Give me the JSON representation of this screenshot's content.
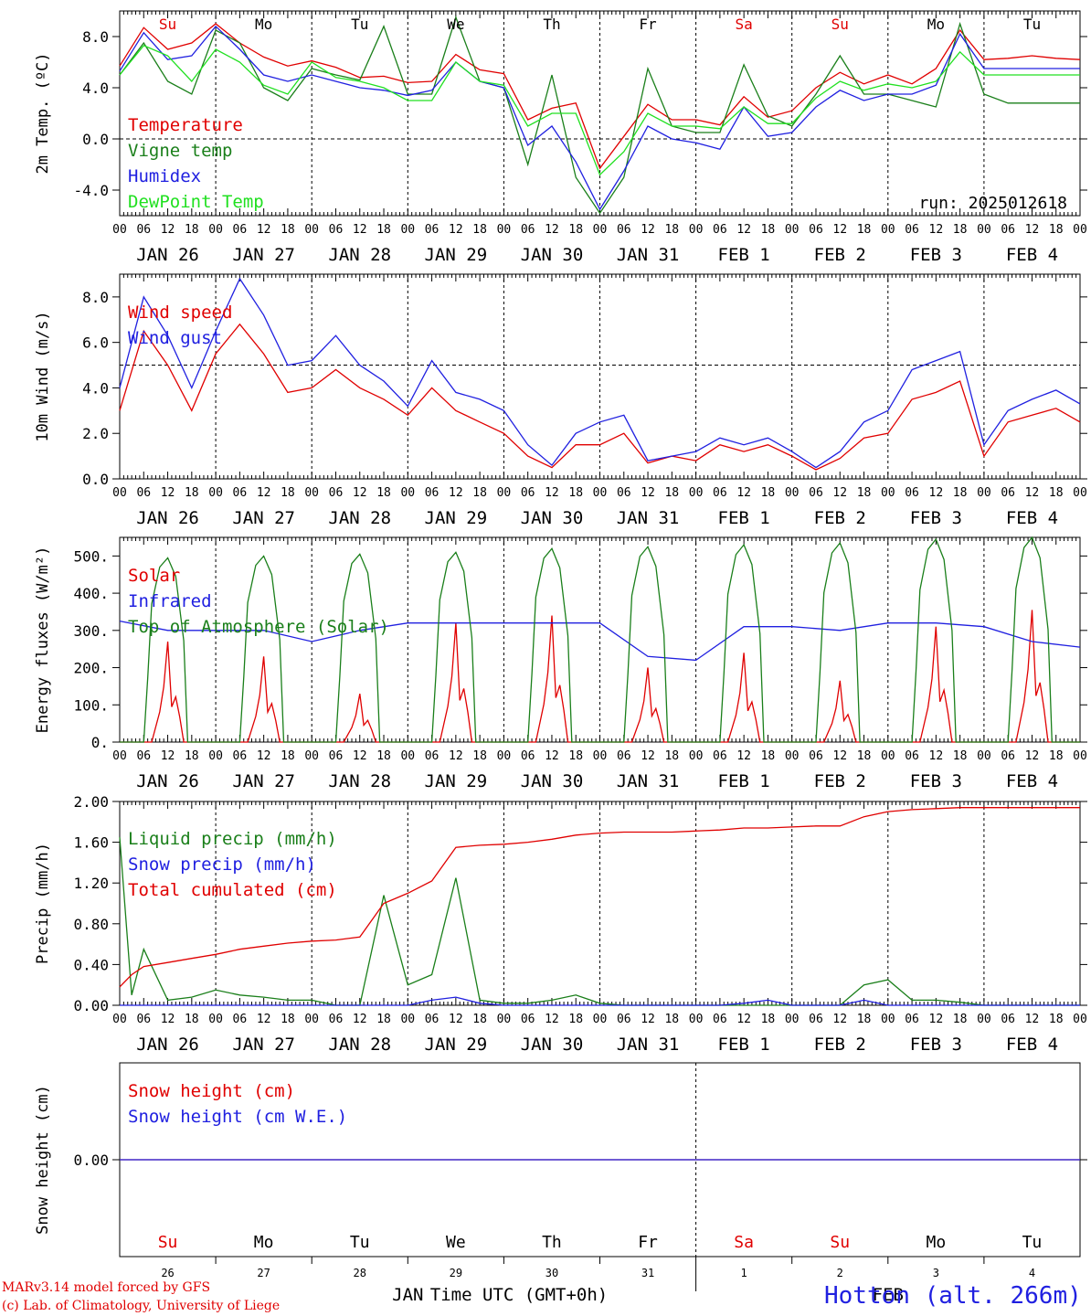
{
  "footer": {
    "model_line": "MARv3.14 model forced by GFS",
    "credit_line": "(c) Lab. of Climatology, University of Liege",
    "station": "Hotton (alt. 266m)"
  },
  "time_axis": {
    "hour_ticks": [
      "00",
      "06",
      "12",
      "18"
    ],
    "date_labels": [
      "JAN 26",
      "JAN 27",
      "JAN 28",
      "JAN 29",
      "JAN 30",
      "JAN 31",
      "FEB  1",
      "FEB  2",
      "FEB  3",
      "FEB  4"
    ],
    "weekdays": [
      "Su",
      "Mo",
      "Tu",
      "We",
      "Th",
      "Fr",
      "Sa",
      "Su",
      "Mo",
      "Tu"
    ],
    "weekday_colors": [
      "#e00000",
      "#000000",
      "#000000",
      "#000000",
      "#000000",
      "#000000",
      "#e00000",
      "#e00000",
      "#000000",
      "#000000"
    ],
    "day_numbers": [
      "26",
      "27",
      "28",
      "29",
      "30",
      "31",
      "1",
      "2",
      "3",
      "4"
    ],
    "month_labels": [
      "JAN",
      "FEB"
    ],
    "xlabel": "Time UTC (GMT+0h)"
  },
  "chart_data": [
    {
      "type": "line",
      "ylabel": "2m Temp. (ºC)",
      "ylim": [
        -6,
        10
      ],
      "yticks": [
        "8.0",
        "4.0",
        "0.0",
        "-4.0"
      ],
      "ytick_values": [
        8,
        4,
        0,
        -4
      ],
      "ref_line": 0,
      "annotation": "run: 2025012618",
      "show_weekdays": true,
      "x_hours": [
        0,
        6,
        12,
        18,
        24,
        30,
        36,
        42,
        48,
        54,
        60,
        66,
        72,
        78,
        84,
        90,
        96,
        102,
        108,
        114,
        120,
        126,
        132,
        138,
        144,
        150,
        156,
        162,
        168,
        174,
        180,
        186,
        192,
        198,
        204,
        210,
        216,
        222,
        228,
        234,
        240
      ],
      "series": [
        {
          "name": "Temperature",
          "color": "#e00000",
          "values": [
            5.7,
            8.7,
            7.0,
            7.5,
            9.0,
            7.5,
            6.4,
            5.7,
            6.1,
            5.6,
            4.8,
            4.9,
            4.4,
            4.5,
            6.6,
            5.4,
            5.1,
            1.5,
            2.4,
            2.8,
            -2.3,
            0.2,
            2.7,
            1.5,
            1.5,
            1.1,
            3.3,
            1.7,
            2.2,
            4.0,
            5.2,
            4.3,
            5.0,
            4.3,
            5.5,
            8.5,
            6.2,
            6.3,
            6.5,
            6.3,
            6.2
          ]
        },
        {
          "name": "Vigne temp",
          "color": "#1a7f1a",
          "values": [
            5.0,
            7.5,
            4.5,
            3.5,
            8.5,
            7.5,
            4.0,
            3.0,
            5.5,
            5.0,
            4.6,
            8.8,
            3.5,
            3.5,
            9.5,
            4.5,
            4.0,
            -2.0,
            5.0,
            -3.0,
            -5.8,
            -3.0,
            5.5,
            1.0,
            0.5,
            0.5,
            5.8,
            1.8,
            1.0,
            3.5,
            6.5,
            3.5,
            3.5,
            3.0,
            2.5,
            9.0,
            3.5,
            2.8,
            2.8,
            2.8,
            2.8
          ]
        },
        {
          "name": "Humidex",
          "color": "#2020e0",
          "values": [
            5.3,
            8.3,
            6.2,
            6.5,
            8.8,
            7.0,
            5.0,
            4.5,
            5.0,
            4.5,
            4.0,
            3.8,
            3.4,
            3.8,
            6.0,
            4.5,
            4.0,
            -0.5,
            1.0,
            -1.8,
            -5.5,
            -2.5,
            1.0,
            0.0,
            -0.3,
            -0.8,
            2.5,
            0.2,
            0.5,
            2.5,
            3.8,
            3.0,
            3.5,
            3.5,
            4.2,
            8.2,
            5.5,
            5.5,
            5.5,
            5.5,
            5.5
          ]
        },
        {
          "name": "DewPoint Temp",
          "color": "#20e020",
          "values": [
            5.0,
            7.3,
            6.5,
            4.5,
            7.0,
            6.0,
            4.2,
            3.5,
            6.0,
            4.8,
            4.5,
            4.0,
            3.0,
            3.0,
            6.0,
            4.5,
            4.2,
            1.0,
            2.0,
            2.0,
            -2.8,
            -1.0,
            2.0,
            1.0,
            1.0,
            0.8,
            2.5,
            1.2,
            1.2,
            3.2,
            4.5,
            3.8,
            4.3,
            4.0,
            4.5,
            6.8,
            5.0,
            5.0,
            5.0,
            5.0,
            5.0
          ]
        }
      ]
    },
    {
      "type": "line",
      "ylabel": "10m Wind (m/s)",
      "ylim": [
        0,
        9
      ],
      "yticks": [
        "8.0",
        "6.0",
        "4.0",
        "2.0",
        "0.0"
      ],
      "ytick_values": [
        8,
        6,
        4,
        2,
        0
      ],
      "ref_line": 5,
      "show_weekdays": false,
      "x_hours": [
        0,
        6,
        12,
        18,
        24,
        30,
        36,
        42,
        48,
        54,
        60,
        66,
        72,
        78,
        84,
        90,
        96,
        102,
        108,
        114,
        120,
        126,
        132,
        138,
        144,
        150,
        156,
        162,
        168,
        174,
        180,
        186,
        192,
        198,
        204,
        210,
        216,
        222,
        228,
        234,
        240
      ],
      "series": [
        {
          "name": "Wind speed",
          "color": "#e00000",
          "values": [
            3.0,
            6.5,
            5.0,
            3.0,
            5.5,
            6.8,
            5.5,
            3.8,
            4.0,
            4.8,
            4.0,
            3.5,
            2.8,
            4.0,
            3.0,
            2.5,
            2.0,
            1.0,
            0.5,
            1.5,
            1.5,
            2.0,
            0.7,
            1.0,
            0.8,
            1.5,
            1.2,
            1.5,
            1.0,
            0.4,
            0.9,
            1.8,
            2.0,
            3.5,
            3.8,
            4.3,
            1.0,
            2.5,
            2.8,
            3.1,
            2.5
          ]
        },
        {
          "name": "Wind gust",
          "color": "#2020e0",
          "values": [
            4.0,
            8.0,
            6.3,
            4.0,
            6.5,
            8.8,
            7.2,
            5.0,
            5.2,
            6.3,
            5.0,
            4.3,
            3.2,
            5.2,
            3.8,
            3.5,
            3.0,
            1.5,
            0.6,
            2.0,
            2.5,
            2.8,
            0.8,
            1.0,
            1.2,
            1.8,
            1.5,
            1.8,
            1.2,
            0.5,
            1.2,
            2.5,
            3.0,
            4.8,
            5.2,
            5.6,
            1.5,
            3.0,
            3.5,
            3.9,
            3.3
          ]
        }
      ]
    },
    {
      "type": "line",
      "ylabel": "Energy fluxes (W/m²)",
      "ylim": [
        0,
        550
      ],
      "yticks": [
        "500.",
        "400.",
        "300.",
        "200.",
        "100.",
        "0."
      ],
      "ytick_values": [
        500,
        400,
        300,
        200,
        100,
        0
      ],
      "show_weekdays": false,
      "series": [
        {
          "name": "Solar",
          "color": "#e00000",
          "peaks": [
            270,
            230,
            130,
            320,
            340,
            200,
            240,
            165,
            310,
            355
          ]
        },
        {
          "name": "Infrared",
          "color": "#2020e0",
          "x_hours": [
            0,
            12,
            24,
            36,
            48,
            60,
            72,
            84,
            96,
            108,
            120,
            132,
            144,
            156,
            168,
            180,
            192,
            204,
            216,
            228,
            240
          ],
          "values": [
            325,
            300,
            300,
            300,
            270,
            300,
            320,
            320,
            320,
            320,
            320,
            230,
            220,
            310,
            310,
            300,
            320,
            320,
            310,
            270,
            255
          ]
        },
        {
          "name": "Top of Atmosphere (Solar)",
          "color": "#1a7f1a",
          "peaks": [
            495,
            500,
            505,
            510,
            520,
            525,
            530,
            535,
            545,
            550
          ]
        }
      ]
    },
    {
      "type": "line",
      "ylabel": "Precip (mm/h)",
      "ylim": [
        0,
        2
      ],
      "yticks": [
        "2.00",
        "1.60",
        "1.20",
        "0.80",
        "0.40",
        "0.00"
      ],
      "ytick_values": [
        2.0,
        1.6,
        1.2,
        0.8,
        0.4,
        0.0
      ],
      "show_weekdays": false,
      "x_hours": [
        0,
        3,
        6,
        12,
        18,
        24,
        30,
        36,
        42,
        48,
        54,
        60,
        66,
        72,
        78,
        84,
        90,
        96,
        102,
        108,
        114,
        120,
        126,
        132,
        138,
        144,
        150,
        156,
        162,
        168,
        174,
        180,
        186,
        192,
        198,
        204,
        210,
        216,
        222,
        228,
        234,
        240
      ],
      "series": [
        {
          "name": "Liquid precip (mm/h)",
          "color": "#1a7f1a",
          "values": [
            1.65,
            0.1,
            0.55,
            0.05,
            0.08,
            0.15,
            0.1,
            0.08,
            0.05,
            0.05,
            0.0,
            0.0,
            1.08,
            0.2,
            0.3,
            1.25,
            0.05,
            0.02,
            0.02,
            0.05,
            0.1,
            0.02,
            0.0,
            0.0,
            0.0,
            0.0,
            0.0,
            0.0,
            0.0,
            0.0,
            0.0,
            0.0,
            0.2,
            0.25,
            0.05,
            0.05,
            0.03,
            0.0,
            0.0,
            0.0,
            0.0,
            0.0
          ]
        },
        {
          "name": "Snow precip (mm/h)",
          "color": "#2020e0",
          "values": [
            0.0,
            0.0,
            0.0,
            0.0,
            0.0,
            0.0,
            0.0,
            0.0,
            0.0,
            0.0,
            0.0,
            0.0,
            0.0,
            0.0,
            0.05,
            0.08,
            0.02,
            0.0,
            0.0,
            0.0,
            0.0,
            0.0,
            0.0,
            0.0,
            0.0,
            0.0,
            0.0,
            0.02,
            0.05,
            0.0,
            0.0,
            0.0,
            0.05,
            0.0,
            0.0,
            0.0,
            0.0,
            0.0,
            0.0,
            0.0,
            0.0,
            0.0
          ]
        },
        {
          "name": "Total cumulated (cm)",
          "color": "#e00000",
          "values": [
            0.18,
            0.3,
            0.38,
            0.42,
            0.46,
            0.5,
            0.55,
            0.58,
            0.61,
            0.63,
            0.64,
            0.67,
            1.0,
            1.1,
            1.22,
            1.55,
            1.57,
            1.58,
            1.6,
            1.63,
            1.67,
            1.69,
            1.7,
            1.7,
            1.7,
            1.71,
            1.72,
            1.74,
            1.74,
            1.75,
            1.76,
            1.76,
            1.85,
            1.9,
            1.92,
            1.93,
            1.94,
            1.94,
            1.94,
            1.94,
            1.94,
            1.94
          ]
        }
      ]
    },
    {
      "type": "line",
      "ylabel": "Snow height (cm)",
      "ylim": [
        -1,
        1
      ],
      "yticks": [
        "0.00"
      ],
      "ytick_values": [
        0.0
      ],
      "show_weekdays": false,
      "x_hours": [
        0,
        240
      ],
      "series": [
        {
          "name": "Snow height (cm)",
          "color": "#e00000",
          "values": [
            0,
            0
          ]
        },
        {
          "name": "Snow height (cm W.E.)",
          "color": "#2020e0",
          "values": [
            0,
            0
          ]
        }
      ]
    }
  ]
}
